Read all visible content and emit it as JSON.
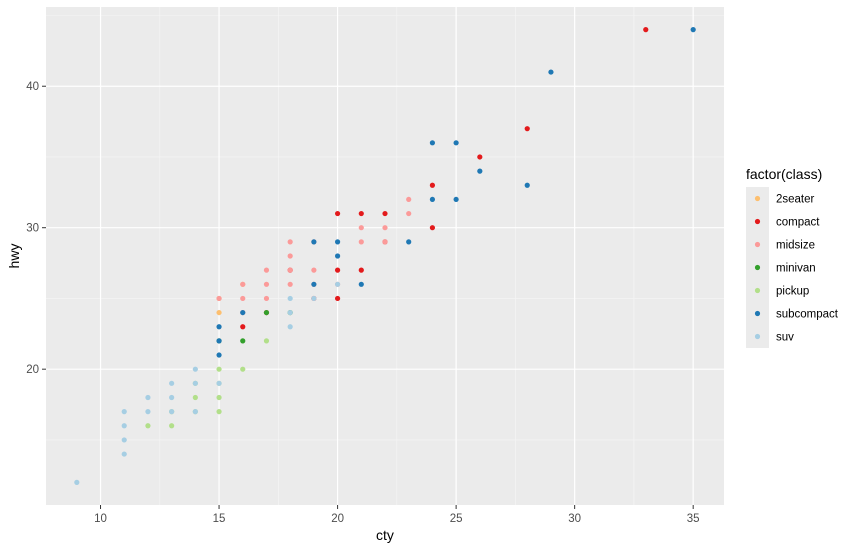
{
  "chart_data": {
    "type": "scatter",
    "xlabel": "cty",
    "ylabel": "hwy",
    "x_ticks": [
      10,
      15,
      20,
      25,
      30,
      35
    ],
    "y_ticks": [
      20,
      30,
      40
    ],
    "xlim": [
      7.7,
      36.3
    ],
    "ylim": [
      10.4,
      45.6
    ],
    "grid": true,
    "legend_position": "right",
    "legend": {
      "title": "factor(class)",
      "entries": [
        {
          "label": "2seater",
          "color": "#FDBF6F"
        },
        {
          "label": "compact",
          "color": "#E31A1C"
        },
        {
          "label": "midsize",
          "color": "#FB9A99"
        },
        {
          "label": "minivan",
          "color": "#33A02C"
        },
        {
          "label": "pickup",
          "color": "#B2DF8A"
        },
        {
          "label": "subcompact",
          "color": "#1F78B4"
        },
        {
          "label": "suv",
          "color": "#A6CEE3"
        }
      ]
    },
    "series": [
      {
        "name": "2seater",
        "points": [
          [
            15,
            25
          ],
          [
            15,
            24
          ],
          [
            16,
            26
          ]
        ]
      },
      {
        "name": "compact",
        "points": [
          [
            33,
            44
          ],
          [
            28,
            37
          ],
          [
            26,
            35
          ],
          [
            24,
            33
          ],
          [
            24,
            30
          ],
          [
            20,
            31
          ],
          [
            21,
            31
          ],
          [
            22,
            31
          ],
          [
            22,
            29
          ],
          [
            21,
            27
          ],
          [
            20,
            27
          ],
          [
            20,
            25
          ],
          [
            19,
            25
          ],
          [
            18,
            27
          ],
          [
            17,
            24
          ],
          [
            16,
            23
          ]
        ]
      },
      {
        "name": "midsize",
        "points": [
          [
            23,
            32
          ],
          [
            23,
            31
          ],
          [
            22,
            30
          ],
          [
            21,
            30
          ],
          [
            21,
            29
          ],
          [
            22,
            29
          ],
          [
            19,
            29
          ],
          [
            18,
            29
          ],
          [
            18,
            28
          ],
          [
            18,
            26
          ],
          [
            18,
            27
          ],
          [
            19,
            27
          ],
          [
            19,
            26
          ],
          [
            19,
            25
          ],
          [
            17,
            27
          ],
          [
            17,
            26
          ],
          [
            17,
            25
          ],
          [
            16,
            26
          ],
          [
            16,
            25
          ],
          [
            16,
            24
          ],
          [
            15,
            25
          ],
          [
            20,
            26
          ]
        ]
      },
      {
        "name": "minivan",
        "points": [
          [
            16,
            22
          ],
          [
            15,
            22
          ],
          [
            17,
            24
          ],
          [
            18,
            24
          ]
        ]
      },
      {
        "name": "pickup",
        "points": [
          [
            15,
            17
          ],
          [
            15,
            18
          ],
          [
            15,
            19
          ],
          [
            15,
            20
          ],
          [
            14,
            17
          ],
          [
            14,
            18
          ],
          [
            14,
            19
          ],
          [
            13,
            16
          ],
          [
            13,
            17
          ],
          [
            12,
            16
          ],
          [
            16,
            20
          ],
          [
            17,
            22
          ]
        ]
      },
      {
        "name": "subcompact",
        "points": [
          [
            35,
            44
          ],
          [
            29,
            41
          ],
          [
            28,
            33
          ],
          [
            26,
            34
          ],
          [
            25,
            36
          ],
          [
            24,
            36
          ],
          [
            24,
            32
          ],
          [
            25,
            32
          ],
          [
            23,
            29
          ],
          [
            21,
            26
          ],
          [
            20,
            29
          ],
          [
            20,
            28
          ],
          [
            19,
            29
          ],
          [
            19,
            26
          ],
          [
            16,
            24
          ],
          [
            15,
            23
          ],
          [
            15,
            22
          ],
          [
            15,
            21
          ]
        ]
      },
      {
        "name": "suv",
        "points": [
          [
            9,
            12
          ],
          [
            11,
            14
          ],
          [
            11,
            15
          ],
          [
            11,
            16
          ],
          [
            11,
            17
          ],
          [
            12,
            17
          ],
          [
            12,
            18
          ],
          [
            13,
            17
          ],
          [
            13,
            18
          ],
          [
            13,
            19
          ],
          [
            14,
            17
          ],
          [
            14,
            19
          ],
          [
            14,
            20
          ],
          [
            15,
            19
          ],
          [
            18,
            25
          ],
          [
            18,
            24
          ],
          [
            18,
            23
          ],
          [
            20,
            26
          ],
          [
            19,
            25
          ]
        ]
      }
    ]
  }
}
